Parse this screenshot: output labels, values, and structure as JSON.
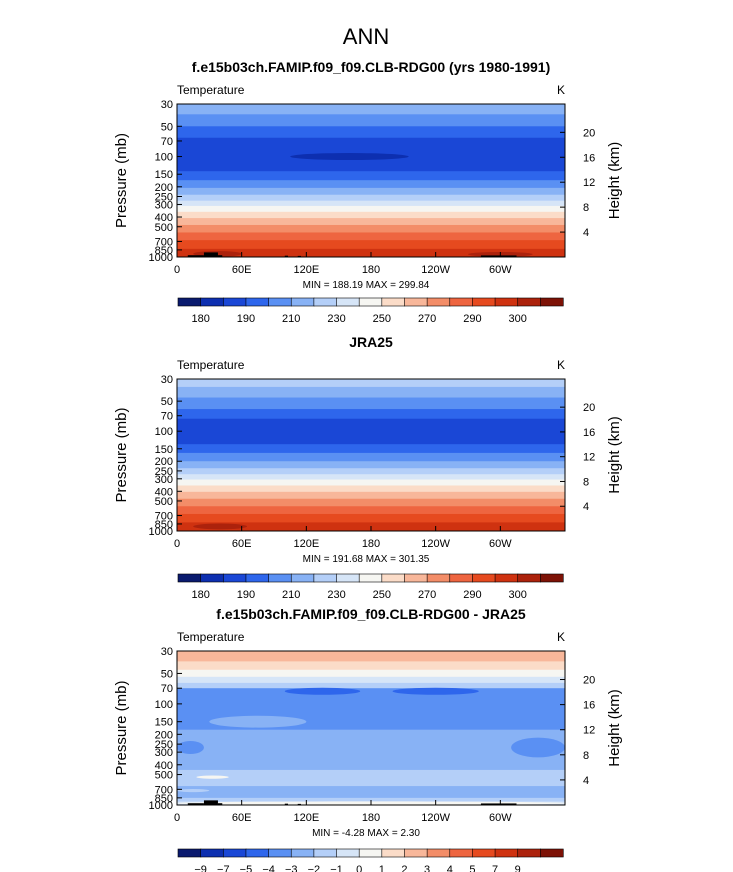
{
  "page": {
    "title": "ANN"
  },
  "chart_data": [
    {
      "type": "heatmap",
      "title": "f.e15b03ch.FAMIP.f09_f09.CLB-RDG00 (yrs 1980-1991)",
      "variable": "Temperature",
      "units": "K",
      "ylabel": "Pressure  (mb)",
      "y2label": "Height  (km)",
      "x_ticks": [
        "0",
        "60E",
        "120E",
        "180",
        "120W",
        "60W"
      ],
      "x_tick_values": [
        0,
        60,
        120,
        180,
        240,
        300
      ],
      "xlim": [
        0,
        360
      ],
      "y_ticks": [
        "30",
        "50",
        "70",
        "100",
        "150",
        "200",
        "250",
        "300",
        "400",
        "500",
        "700",
        "850",
        "1000"
      ],
      "y_tick_values": [
        30,
        50,
        70,
        100,
        150,
        200,
        250,
        300,
        400,
        500,
        700,
        850,
        1000
      ],
      "ylim": [
        1000,
        30
      ],
      "height_ticks": [
        "20",
        "16",
        "12",
        "8",
        "4"
      ],
      "height_tick_values": [
        20,
        16,
        12,
        8,
        4
      ],
      "stats": "MIN =  188.19   MAX =  299.84",
      "levels": [
        "180",
        "190",
        "210",
        "230",
        "250",
        "270",
        "290",
        "300"
      ],
      "colors": [
        "#0a1a6e",
        "#0d2fb0",
        "#1a47d6",
        "#2e66ec",
        "#5a90f3",
        "#88b2f5",
        "#b4cff8",
        "#d6e5f7",
        "#f6f6f2",
        "#fbdcc8",
        "#f8b79a",
        "#f38d68",
        "#ee6540",
        "#e64a1f",
        "#cf3210",
        "#ac220c",
        "#7d1206"
      ],
      "bands": [
        {
          "p_top": 30,
          "p_bot": 38,
          "color_index": 5
        },
        {
          "p_top": 38,
          "p_bot": 50,
          "color_index": 4
        },
        {
          "p_top": 50,
          "p_bot": 65,
          "color_index": 3
        },
        {
          "p_top": 65,
          "p_bot": 140,
          "color_index": 2
        },
        {
          "p_top": 140,
          "p_bot": 172,
          "color_index": 3
        },
        {
          "p_top": 172,
          "p_bot": 205,
          "color_index": 4
        },
        {
          "p_top": 205,
          "p_bot": 240,
          "color_index": 5
        },
        {
          "p_top": 240,
          "p_bot": 275,
          "color_index": 6
        },
        {
          "p_top": 275,
          "p_bot": 310,
          "color_index": 7
        },
        {
          "p_top": 310,
          "p_bot": 355,
          "color_index": 8
        },
        {
          "p_top": 355,
          "p_bot": 410,
          "color_index": 9
        },
        {
          "p_top": 410,
          "p_bot": 480,
          "color_index": 10
        },
        {
          "p_top": 480,
          "p_bot": 570,
          "color_index": 11
        },
        {
          "p_top": 570,
          "p_bot": 680,
          "color_index": 12
        },
        {
          "p_top": 680,
          "p_bot": 830,
          "color_index": 13
        },
        {
          "p_top": 830,
          "p_bot": 1000,
          "color_index": 14
        }
      ],
      "features": [
        {
          "lon_from": 105,
          "lon_to": 215,
          "p": 100,
          "p_half": 8,
          "color_index": 1
        },
        {
          "lon_from": 15,
          "lon_to": 60,
          "p": 930,
          "p_half": 60,
          "color_index": 15
        },
        {
          "lon_from": 270,
          "lon_to": 330,
          "p": 940,
          "p_half": 50,
          "color_index": 15
        }
      ],
      "terrain": [
        {
          "lon_from": 10,
          "lon_to": 25,
          "p_top": 960
        },
        {
          "lon_from": 25,
          "lon_to": 38,
          "p_top": 900
        },
        {
          "lon_from": 38,
          "lon_to": 42,
          "p_top": 960
        },
        {
          "lon_from": 100,
          "lon_to": 103,
          "p_top": 970
        },
        {
          "lon_from": 112,
          "lon_to": 115,
          "p_top": 975
        },
        {
          "lon_from": 282,
          "lon_to": 315,
          "p_top": 965
        }
      ]
    },
    {
      "type": "heatmap",
      "title": "JRA25",
      "variable": "Temperature",
      "units": "K",
      "ylabel": "Pressure  (mb)",
      "y2label": "Height  (km)",
      "x_ticks": [
        "0",
        "60E",
        "120E",
        "180",
        "120W",
        "60W"
      ],
      "x_tick_values": [
        0,
        60,
        120,
        180,
        240,
        300
      ],
      "xlim": [
        0,
        360
      ],
      "y_ticks": [
        "30",
        "50",
        "70",
        "100",
        "150",
        "200",
        "250",
        "300",
        "400",
        "500",
        "700",
        "850",
        "1000"
      ],
      "y_tick_values": [
        30,
        50,
        70,
        100,
        150,
        200,
        250,
        300,
        400,
        500,
        700,
        850,
        1000
      ],
      "ylim": [
        1000,
        30
      ],
      "height_ticks": [
        "20",
        "16",
        "12",
        "8",
        "4"
      ],
      "height_tick_values": [
        20,
        16,
        12,
        8,
        4
      ],
      "stats": "MIN =  191.68   MAX =  301.35",
      "levels": [
        "180",
        "190",
        "210",
        "230",
        "250",
        "270",
        "290",
        "300"
      ],
      "colors": [
        "#0a1a6e",
        "#0d2fb0",
        "#1a47d6",
        "#2e66ec",
        "#5a90f3",
        "#88b2f5",
        "#b4cff8",
        "#d6e5f7",
        "#f6f6f2",
        "#fbdcc8",
        "#f8b79a",
        "#f38d68",
        "#ee6540",
        "#e64a1f",
        "#cf3210",
        "#ac220c",
        "#7d1206"
      ],
      "bands": [
        {
          "p_top": 30,
          "p_bot": 36,
          "color_index": 6
        },
        {
          "p_top": 36,
          "p_bot": 46,
          "color_index": 5
        },
        {
          "p_top": 46,
          "p_bot": 60,
          "color_index": 4
        },
        {
          "p_top": 60,
          "p_bot": 75,
          "color_index": 3
        },
        {
          "p_top": 75,
          "p_bot": 135,
          "color_index": 2
        },
        {
          "p_top": 135,
          "p_bot": 165,
          "color_index": 3
        },
        {
          "p_top": 165,
          "p_bot": 200,
          "color_index": 4
        },
        {
          "p_top": 200,
          "p_bot": 235,
          "color_index": 5
        },
        {
          "p_top": 235,
          "p_bot": 270,
          "color_index": 6
        },
        {
          "p_top": 270,
          "p_bot": 305,
          "color_index": 7
        },
        {
          "p_top": 305,
          "p_bot": 350,
          "color_index": 8
        },
        {
          "p_top": 350,
          "p_bot": 405,
          "color_index": 9
        },
        {
          "p_top": 405,
          "p_bot": 475,
          "color_index": 10
        },
        {
          "p_top": 475,
          "p_bot": 565,
          "color_index": 11
        },
        {
          "p_top": 565,
          "p_bot": 675,
          "color_index": 12
        },
        {
          "p_top": 675,
          "p_bot": 820,
          "color_index": 13
        },
        {
          "p_top": 820,
          "p_bot": 1000,
          "color_index": 14
        }
      ],
      "features": [
        {
          "lon_from": 15,
          "lon_to": 65,
          "p": 900,
          "p_half": 60,
          "color_index": 15
        }
      ],
      "terrain": []
    },
    {
      "type": "heatmap",
      "title": "f.e15b03ch.FAMIP.f09_f09.CLB-RDG00 - JRA25",
      "variable": "Temperature",
      "units": "K",
      "ylabel": "Pressure  (mb)",
      "y2label": "Height  (km)",
      "x_ticks": [
        "0",
        "60E",
        "120E",
        "180",
        "120W",
        "60W"
      ],
      "x_tick_values": [
        0,
        60,
        120,
        180,
        240,
        300
      ],
      "xlim": [
        0,
        360
      ],
      "y_ticks": [
        "30",
        "50",
        "70",
        "100",
        "150",
        "200",
        "250",
        "300",
        "400",
        "500",
        "700",
        "850",
        "1000"
      ],
      "y_tick_values": [
        30,
        50,
        70,
        100,
        150,
        200,
        250,
        300,
        400,
        500,
        700,
        850,
        1000
      ],
      "ylim": [
        1000,
        30
      ],
      "height_ticks": [
        "20",
        "16",
        "12",
        "8",
        "4"
      ],
      "height_tick_values": [
        20,
        16,
        12,
        8,
        4
      ],
      "stats": "MIN =   -4.28   MAX =    2.30",
      "levels": [
        "−9",
        "−7",
        "−5",
        "−4",
        "−3",
        "−2",
        "−1",
        "0",
        "1",
        "2",
        "3",
        "4",
        "5",
        "7",
        "9"
      ],
      "colors": [
        "#0a1a6e",
        "#0d2fb0",
        "#1a47d6",
        "#2e66ec",
        "#5a90f3",
        "#88b2f5",
        "#b4cff8",
        "#d6e5f7",
        "#f6f6f2",
        "#fbdcc8",
        "#f8b79a",
        "#f38d68",
        "#ee6540",
        "#e64a1f",
        "#cf3210",
        "#ac220c",
        "#7d1206"
      ],
      "bands": [
        {
          "p_top": 30,
          "p_bot": 38,
          "color_index": 10
        },
        {
          "p_top": 38,
          "p_bot": 46,
          "color_index": 9
        },
        {
          "p_top": 46,
          "p_bot": 54,
          "color_index": 8
        },
        {
          "p_top": 54,
          "p_bot": 62,
          "color_index": 7
        },
        {
          "p_top": 62,
          "p_bot": 70,
          "color_index": 6
        },
        {
          "p_top": 70,
          "p_bot": 180,
          "color_index": 4
        },
        {
          "p_top": 180,
          "p_bot": 450,
          "color_index": 5
        },
        {
          "p_top": 450,
          "p_bot": 650,
          "color_index": 6
        },
        {
          "p_top": 650,
          "p_bot": 850,
          "color_index": 5
        },
        {
          "p_top": 850,
          "p_bot": 925,
          "color_index": 6
        },
        {
          "p_top": 925,
          "p_bot": 1000,
          "color_index": 7
        }
      ],
      "features": [
        {
          "lon_from": 100,
          "lon_to": 170,
          "p": 75,
          "p_half": 6,
          "color_index": 3
        },
        {
          "lon_from": 200,
          "lon_to": 280,
          "p": 75,
          "p_half": 6,
          "color_index": 3
        },
        {
          "lon_from": 0,
          "lon_to": 25,
          "p": 270,
          "p_half": 40,
          "color_index": 4
        },
        {
          "lon_from": 310,
          "lon_to": 360,
          "p": 270,
          "p_half": 60,
          "color_index": 4
        },
        {
          "lon_from": 30,
          "lon_to": 120,
          "p": 150,
          "p_half": 20,
          "color_index": 5
        },
        {
          "lon_from": 18,
          "lon_to": 48,
          "p": 530,
          "p_half": 20,
          "color_index": 8
        },
        {
          "lon_from": 0,
          "lon_to": 30,
          "p": 720,
          "p_half": 25,
          "color_index": 6
        },
        {
          "lon_from": 0,
          "lon_to": 360,
          "p": 960,
          "p_half": 40,
          "color_index": 8
        }
      ],
      "terrain": [
        {
          "lon_from": 10,
          "lon_to": 25,
          "p_top": 960
        },
        {
          "lon_from": 25,
          "lon_to": 38,
          "p_top": 900
        },
        {
          "lon_from": 38,
          "lon_to": 42,
          "p_top": 960
        },
        {
          "lon_from": 100,
          "lon_to": 103,
          "p_top": 970
        },
        {
          "lon_from": 112,
          "lon_to": 115,
          "p_top": 975
        },
        {
          "lon_from": 282,
          "lon_to": 315,
          "p_top": 965
        }
      ]
    }
  ]
}
